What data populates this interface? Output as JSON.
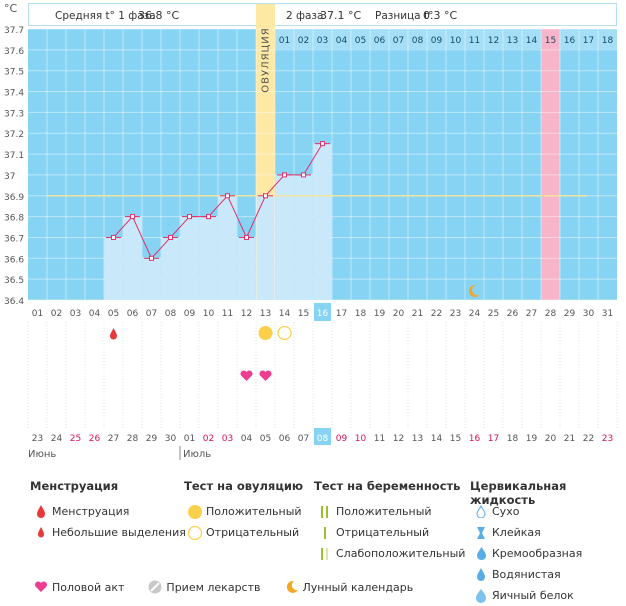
{
  "header": {
    "phase1_label": "Средняя t° 1 фаза",
    "phase1_value": "36.8 °C",
    "phase2_label": "2 фаза",
    "phase2_value": "37.1 °C",
    "diff_label": "Разница t°",
    "diff_value": "0.3 °C"
  },
  "colors": {
    "chart_bg": "#86d3f4",
    "ovulation_band": "#fde8a4",
    "period_band": "#f8b4c8",
    "bar_fill": "#c9e9fb",
    "line": "#e0306a",
    "coverline": "#f0e6a0",
    "ovulation_test": "#fad04b",
    "heart": "#ee3e8f",
    "moon": "#f5a623",
    "current_day_bg": "#86d3f4"
  },
  "chart_data": {
    "type": "line",
    "ylabel": "°C",
    "ylim": [
      36.4,
      37.7
    ],
    "yticks": [
      "37.7",
      "37.6",
      "37.5",
      "37.4",
      "37.3",
      "37.2",
      "37.1",
      "37",
      "36.9",
      "36.8",
      "36.7",
      "36.6",
      "36.5",
      "36.4"
    ],
    "cycle_days": [
      "01",
      "02",
      "03",
      "04",
      "05",
      "06",
      "07",
      "08",
      "09",
      "10",
      "11",
      "12",
      "13",
      "14",
      "15",
      "16",
      "17",
      "18",
      "19",
      "20",
      "21",
      "22",
      "23",
      "24",
      "25",
      "26",
      "27",
      "28",
      "29",
      "30",
      "31"
    ],
    "phase2_days": [
      "01",
      "02",
      "03",
      "04",
      "05",
      "06",
      "07",
      "08",
      "09",
      "10",
      "11",
      "12",
      "13",
      "14",
      "15",
      "16",
      "17",
      "18"
    ],
    "calendar_dates": [
      "23",
      "24",
      "25",
      "26",
      "27",
      "28",
      "29",
      "30",
      "01",
      "02",
      "03",
      "04",
      "05",
      "06",
      "07",
      "08",
      "09",
      "10",
      "11",
      "12",
      "13",
      "14",
      "15",
      "16",
      "17",
      "18",
      "19",
      "20",
      "21",
      "22",
      "23"
    ],
    "weekend_indices": [
      2,
      3,
      9,
      10,
      16,
      17,
      23,
      24,
      30
    ],
    "months": [
      "Июнь",
      "Июль"
    ],
    "month_start_index": 8,
    "series": [
      {
        "x": [
          5,
          6,
          7,
          8,
          9,
          10,
          11,
          12,
          13,
          14,
          15,
          16
        ],
        "values": [
          36.7,
          36.8,
          36.6,
          36.7,
          36.8,
          36.8,
          36.9,
          36.7,
          36.9,
          37.0,
          37.0,
          37.15
        ]
      }
    ],
    "coverline": 36.9,
    "ovulation_day": 13,
    "ovulation_label": "ОВУЛЯЦИЯ",
    "period_expected_day": 28,
    "current_day": 16,
    "menstruation_days": [
      5
    ],
    "ovulation_test_positive_days": [
      13
    ],
    "ovulation_test_negative_days": [
      14
    ],
    "intercourse_days": [
      12,
      13
    ],
    "moon_days": [
      24
    ]
  },
  "legend": {
    "menstruation": {
      "title": "Менструация",
      "items": [
        "Менструация",
        "Небольшие выделения"
      ]
    },
    "ovulation_test": {
      "title": "Тест на овуляцию",
      "items": [
        "Положительный",
        "Отрицательный"
      ]
    },
    "pregnancy_test": {
      "title": "Тест на беременность",
      "items": [
        "Положительный",
        "Отрицательный",
        "Слабоположительный"
      ]
    },
    "cervical": {
      "title": "Цервикальная жидкость",
      "items": [
        "Сухо",
        "Клейкая",
        "Кремообразная",
        "Водянистая",
        "Яичный белок"
      ]
    },
    "bottom": [
      "Половой акт",
      "Прием лекарств",
      "Лунный календарь"
    ]
  }
}
